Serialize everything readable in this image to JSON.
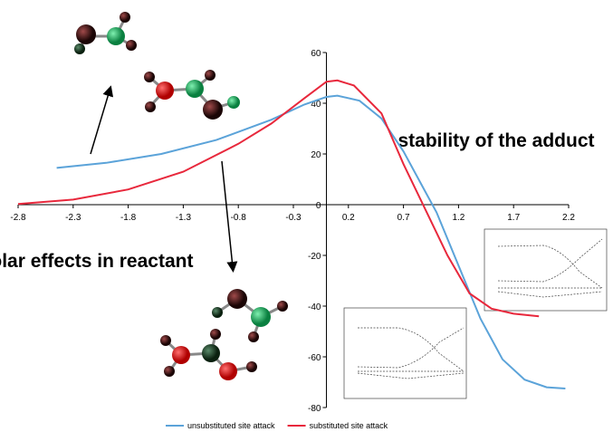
{
  "chart_data": {
    "type": "line",
    "xlim": [
      -2.8,
      2.2
    ],
    "xticks": [
      -2.8,
      -2.3,
      -1.8,
      -1.3,
      -0.8,
      -0.3,
      0.2,
      0.7,
      1.2,
      1.7,
      2.2
    ],
    "ylim": [
      -80,
      60
    ],
    "yticks": [
      -80,
      -60,
      -40,
      -20,
      0,
      20,
      40,
      60
    ],
    "annotations": [
      "stability of the adduct",
      "polar effects in reactant"
    ],
    "series": [
      {
        "name": "unsubstituted site attack",
        "color": "#5ba3d9",
        "x": [
          -2.45,
          -2.0,
          -1.5,
          -1.0,
          -0.5,
          -0.2,
          0,
          0.1,
          0.3,
          0.5,
          0.7,
          0.9,
          1.0,
          1.2,
          1.4,
          1.6,
          1.8,
          2.0,
          2.17
        ],
        "values": [
          14.5,
          16.5,
          20,
          25.5,
          33.5,
          39.5,
          42.5,
          43,
          41,
          34,
          21,
          5,
          -3,
          -24,
          -45,
          -61,
          -69,
          -72,
          -72.5
        ]
      },
      {
        "name": "substituted site attack",
        "color": "#e8283c",
        "x": [
          -2.8,
          -2.3,
          -1.8,
          -1.3,
          -0.8,
          -0.5,
          -0.2,
          0,
          0.1,
          0.25,
          0.5,
          0.7,
          0.9,
          1.1,
          1.3,
          1.5,
          1.7,
          1.93
        ],
        "values": [
          0.3,
          2,
          6,
          13,
          24,
          32,
          42,
          48.5,
          49,
          47,
          36,
          16,
          -2,
          -20,
          -35,
          -41,
          -43,
          -44
        ]
      }
    ]
  }
}
